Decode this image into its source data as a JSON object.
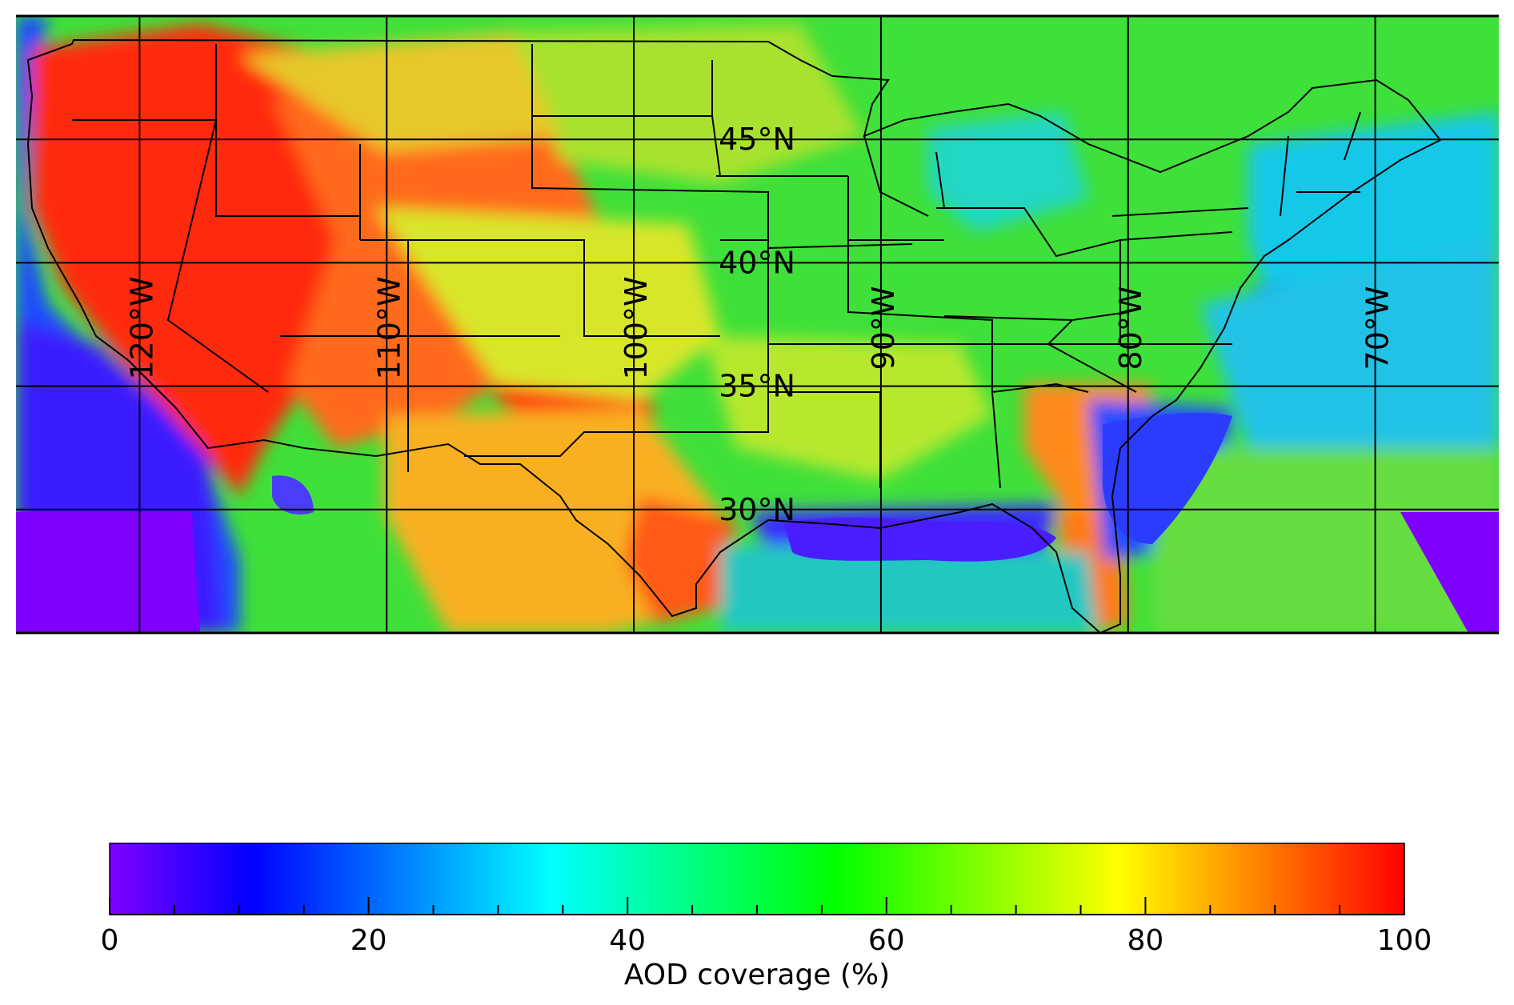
{
  "map": {
    "extent": {
      "lon_min": -125,
      "lon_max": -65,
      "lat_min": 25,
      "lat_max": 50
    },
    "meridians": [
      {
        "lon": -120,
        "label": "120°W"
      },
      {
        "lon": -110,
        "label": "110°W"
      },
      {
        "lon": -100,
        "label": "100°W"
      },
      {
        "lon": -90,
        "label": "90°W"
      },
      {
        "lon": -80,
        "label": "80°W"
      },
      {
        "lon": -70,
        "label": "70°W"
      }
    ],
    "parallels": [
      {
        "lat": 30,
        "label": "30°N"
      },
      {
        "lat": 35,
        "label": "35°N"
      },
      {
        "lat": 40,
        "label": "40°N"
      },
      {
        "lat": 45,
        "label": "45°N"
      }
    ],
    "field_description": "Percent coverage of aerosol optical depth retrievals; high (red) over the arid West and Texas/Florida coasts, mid (green) over the central/eastern US, low (blue/purple) over oceans and the Gulf of Mexico."
  },
  "colorbar": {
    "label": "AOD coverage (%)",
    "min": 0,
    "max": 100,
    "ticks": [
      "0",
      "20",
      "40",
      "60",
      "80",
      "100"
    ],
    "colormap": [
      "#7f00ff",
      "#0000ff",
      "#00ffff",
      "#00ff00",
      "#ffff00",
      "#ff0000"
    ],
    "minor_tick_step": 5
  }
}
